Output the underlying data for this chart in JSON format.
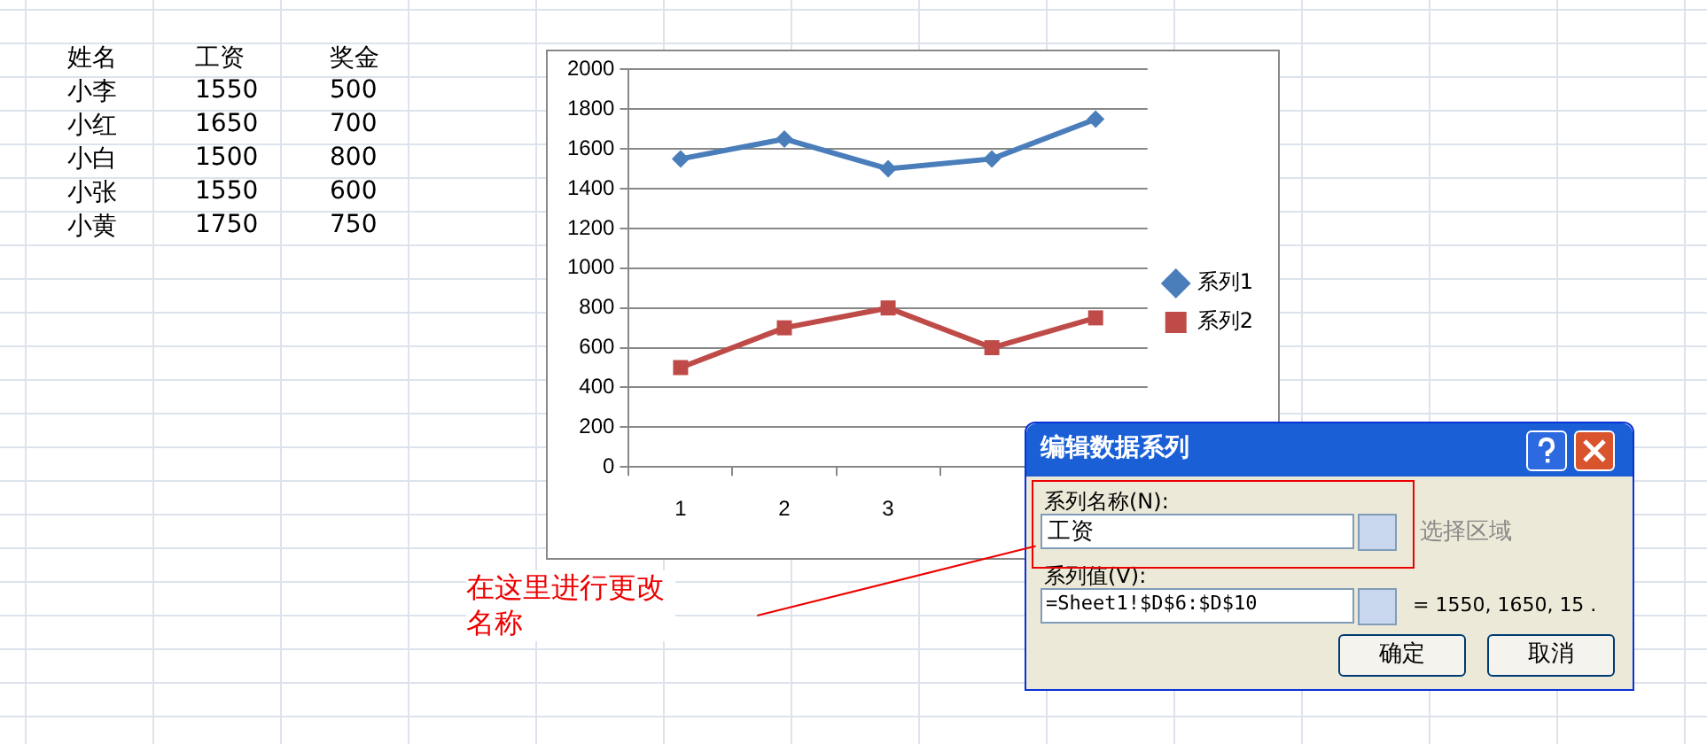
{
  "chart_data": {
    "type": "line",
    "categories": [
      "1",
      "2",
      "3",
      null,
      null
    ],
    "series": [
      {
        "name": "系列1",
        "color": "#4a7ebb",
        "values": [
          1550,
          1650,
          1500,
          1550,
          1750
        ],
        "marker": "diamond"
      },
      {
        "name": "系列2",
        "color": "#be4b48",
        "values": [
          500,
          700,
          800,
          600,
          750
        ],
        "marker": "square"
      }
    ],
    "ylim": [
      0,
      2000
    ],
    "yticks": [
      0,
      200,
      400,
      600,
      800,
      1000,
      1200,
      1400,
      1600,
      1800,
      2000
    ],
    "grid": "y",
    "legend": "right",
    "line_style": "solid",
    "annotations": [
      "姓名",
      "工资",
      "奖金",
      "小李",
      "1550",
      "500",
      "小红",
      "1650",
      "700",
      "小白",
      "1500",
      "800",
      "小张",
      "1550",
      "600",
      "小黄",
      "1750",
      "750",
      "编辑数据系列",
      "系列名称(N):",
      "工资",
      "选择区域",
      "系列值(V):",
      "=Sheet1!$D$6:$D$10",
      "= 1550, 1650, 15 .",
      "确定",
      "取消",
      "在这里进行更改名称"
    ]
  }
}
